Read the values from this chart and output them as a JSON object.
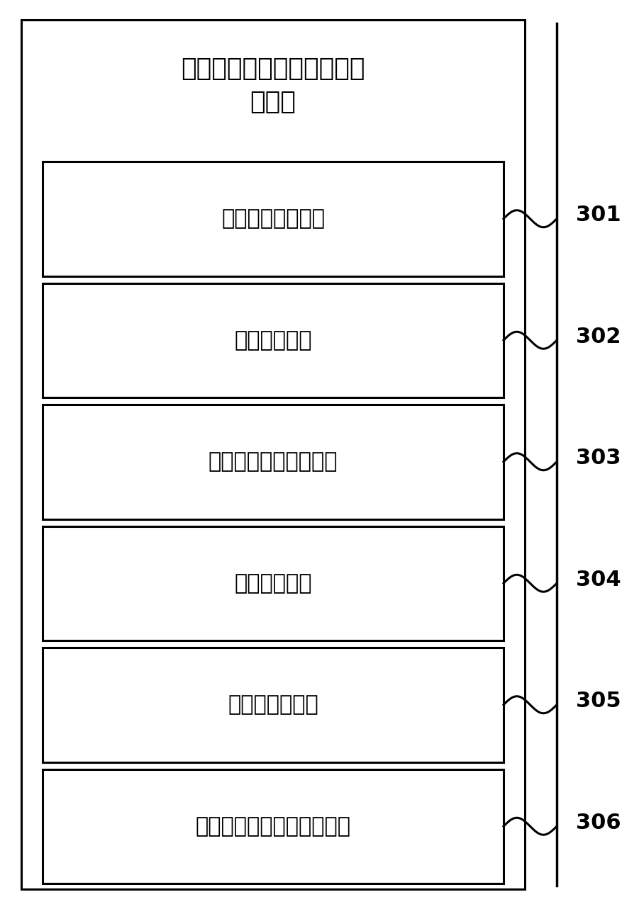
{
  "title_line1": "污染物排放清单时间分布确",
  "title_line2": "定装置",
  "modules": [
    "样本对象确定模块",
    "数据采集模块",
    "神经网络模型构建模块",
    "模型训练模块",
    "燃用量确定模块",
    "排放清单时间分布确定模块"
  ],
  "labels": [
    "301",
    "302",
    "303",
    "304",
    "305",
    "306"
  ],
  "outer_box_color": "#000000",
  "inner_box_color": "#000000",
  "bg_color": "#ffffff",
  "text_color": "#000000",
  "title_fontsize": 26,
  "module_fontsize": 22,
  "label_fontsize": 22,
  "fig_width": 9.01,
  "fig_height": 12.83
}
